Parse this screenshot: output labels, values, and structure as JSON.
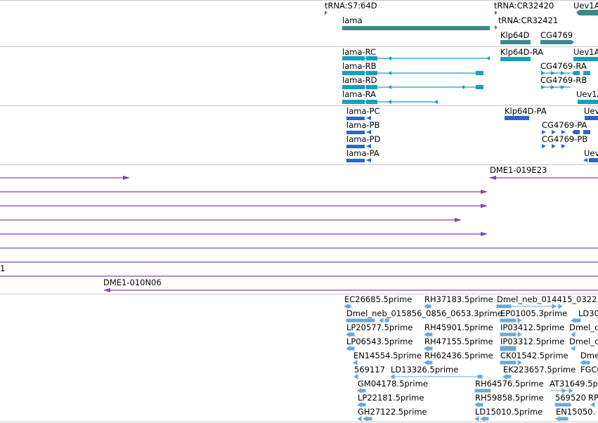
{
  "colors": {
    "gene": "#3a8a8a",
    "transcript": "#14a0c0",
    "protein": "#2e64c8",
    "clone": "#7a4aa8",
    "est": "#6aa8d8",
    "divider": "#c8c8c8"
  },
  "genes_track": {
    "labels": [
      "tRNA:S7:64D",
      "tRNA:CR32420",
      "Uev1A",
      "lama",
      "tRNA:CR32421",
      "Klp64D",
      "CG4769"
    ]
  },
  "transcripts_track": {
    "labels": [
      "lama-RC",
      "Klp64D-RA",
      "Uev1A",
      "lama-RB",
      "CG4769-RA",
      "lama-RD",
      "CG4769-RB",
      "lama-RA",
      "Uev1A"
    ]
  },
  "proteins_track": {
    "labels": [
      "lama-PC",
      "Klp64D-PA",
      "Uev",
      "lama-PB",
      "CG4769-PA",
      "lama-PD",
      "CG4769-PB",
      "lama-PA",
      "Uev"
    ]
  },
  "clones_track": {
    "labels": [
      "DME1-019E23",
      "1",
      "DME1-010N06"
    ]
  },
  "est_track": {
    "labels": [
      "EC26685.5prime",
      "RH37183.5prime",
      "Dmel_neb_014415_0322",
      "Dmel_neb_015856_0856_0653.3prime",
      "EP01005.3prime",
      "LD30",
      "LP20577.5prime",
      "RH45901.5prime",
      "IP03412.5prime",
      "Dmel_c",
      "LP06543.5prime",
      "RH47155.5prime",
      "IP03312.5prime",
      "Dmel_c",
      "EN14554.5prime",
      "RH62436.5prime",
      "CK01542.5prime",
      "Dmel_n",
      "569117",
      "LD13326.5prime",
      "EK223657.5prime",
      "FGC0",
      "GM04178.5prime",
      "RH64576.5prime",
      "AT31649.5p",
      "LP22181.5prime",
      "RH59858.5prime",
      "569520",
      "RP",
      "GH27122.5prime",
      "LD15010.5prime",
      "EN15050."
    ]
  }
}
